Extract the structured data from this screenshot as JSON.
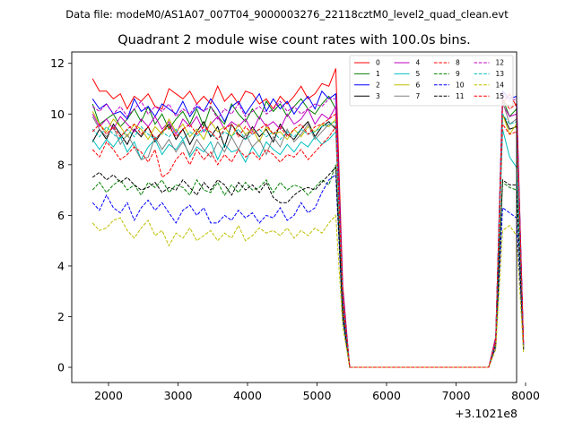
{
  "page": {
    "suptitle": "Data file: modeM0/AS1A07_007T04_9000003276_22118cztM0_level2_quad_clean.evt"
  },
  "chart_data": {
    "type": "line",
    "title": "Quadrant 2 module wise count rates with 100.0s bins.",
    "xlabel": "",
    "ylabel": "",
    "x_offset_label": "+3.1021e8",
    "xlim": [
      1600,
      8000
    ],
    "ylim": [
      -0.6,
      12.45
    ],
    "xticks": [
      2000,
      3000,
      4000,
      5000,
      6000,
      7000,
      8000
    ],
    "yticks": [
      0,
      2,
      4,
      6,
      8,
      10,
      12
    ],
    "grid": false,
    "legend": {
      "placement": "top-right",
      "columns": 4
    },
    "x": [
      1770,
      1870,
      1970,
      2070,
      2170,
      2270,
      2370,
      2470,
      2570,
      2670,
      2770,
      2870,
      2970,
      3070,
      3170,
      3270,
      3370,
      3470,
      3570,
      3670,
      3770,
      3870,
      3970,
      4070,
      4170,
      4270,
      4370,
      4470,
      4570,
      4670,
      4770,
      4870,
      4970,
      5070,
      5170,
      5270,
      5370,
      5470,
      7470,
      7570,
      7670,
      7770,
      7870,
      7970
    ],
    "series": [
      {
        "name": "0",
        "color": "#ff0000",
        "dash": "solid",
        "values": [
          11.4,
          10.9,
          10.9,
          10.6,
          10.8,
          10.2,
          10.7,
          10.5,
          10.8,
          10.3,
          10.2,
          11.0,
          10.8,
          10.6,
          10.9,
          10.4,
          10.7,
          10.4,
          11.1,
          10.5,
          10.8,
          10.4,
          10.9,
          10.8,
          10.4,
          10.6,
          10.2,
          10.7,
          10.4,
          10.7,
          11.1,
          10.6,
          10.8,
          11.2,
          11.1,
          11.8,
          3.2,
          0.0,
          0.0,
          1.2,
          10.4,
          10.8,
          10.3,
          0.8
        ]
      },
      {
        "name": "1",
        "color": "#008000",
        "dash": "solid",
        "values": [
          10.4,
          9.6,
          9.8,
          10.0,
          9.5,
          9.8,
          10.2,
          9.7,
          10.3,
          9.6,
          10.0,
          9.4,
          9.8,
          10.1,
          9.6,
          10.2,
          9.5,
          10.3,
          9.9,
          9.6,
          10.4,
          10.0,
          9.7,
          10.2,
          9.8,
          10.5,
          10.1,
          10.4,
          9.9,
          10.3,
          10.6,
          10.2,
          10.0,
          10.4,
          10.7,
          10.2,
          2.8,
          0.0,
          0.0,
          1.0,
          10.6,
          9.9,
          10.2,
          0.9
        ]
      },
      {
        "name": "2",
        "color": "#0000ff",
        "dash": "solid",
        "values": [
          10.6,
          10.2,
          10.4,
          10.0,
          10.1,
          9.8,
          10.6,
          10.1,
          10.3,
          9.9,
          10.4,
          10.2,
          10.0,
          10.5,
          9.9,
          10.3,
          10.1,
          10.6,
          10.2,
          9.7,
          10.3,
          10.5,
          10.0,
          10.4,
          10.8,
          10.1,
          10.6,
          10.2,
          10.5,
          10.0,
          10.4,
          10.7,
          10.2,
          10.9,
          10.6,
          10.8,
          3.0,
          0.0,
          0.0,
          1.1,
          10.9,
          10.6,
          10.7,
          0.9
        ]
      },
      {
        "name": "3",
        "color": "#000000",
        "dash": "solid",
        "values": [
          8.9,
          9.4,
          9.0,
          9.6,
          9.2,
          8.8,
          9.4,
          9.1,
          9.5,
          8.9,
          9.3,
          9.6,
          9.0,
          9.4,
          8.8,
          9.3,
          9.7,
          9.1,
          9.5,
          8.7,
          9.6,
          9.2,
          9.0,
          9.5,
          9.1,
          9.4,
          8.9,
          9.6,
          9.2,
          9.0,
          9.4,
          9.7,
          9.1,
          9.5,
          9.7,
          9.4,
          2.6,
          0.0,
          0.0,
          1.0,
          10.0,
          9.4,
          9.5,
          0.8
        ]
      },
      {
        "name": "4",
        "color": "#bf00bf",
        "dash": "solid",
        "values": [
          10.0,
          9.5,
          9.8,
          9.4,
          9.9,
          9.6,
          9.3,
          9.8,
          9.5,
          9.9,
          9.4,
          9.7,
          9.2,
          9.8,
          9.5,
          9.9,
          9.3,
          9.6,
          9.9,
          9.4,
          9.7,
          9.5,
          9.8,
          9.3,
          9.9,
          9.5,
          9.7,
          9.4,
          10.0,
          9.6,
          9.8,
          10.2,
          9.6,
          10.0,
          9.8,
          10.3,
          2.8,
          0.0,
          0.0,
          1.0,
          10.4,
          9.9,
          10.0,
          0.9
        ]
      },
      {
        "name": "5",
        "color": "#00bfbf",
        "dash": "solid",
        "values": [
          9.0,
          8.6,
          9.0,
          8.7,
          9.1,
          8.5,
          8.9,
          8.2,
          8.7,
          9.0,
          8.4,
          8.8,
          8.6,
          9.0,
          8.3,
          8.7,
          8.5,
          8.9,
          8.2,
          8.8,
          8.5,
          8.6,
          8.1,
          8.7,
          8.3,
          8.9,
          8.6,
          8.4,
          8.8,
          8.5,
          8.9,
          8.7,
          9.1,
          8.8,
          9.0,
          9.3,
          2.5,
          0.0,
          0.0,
          1.0,
          9.4,
          8.3,
          7.9,
          0.8
        ]
      },
      {
        "name": "6",
        "color": "#bfbf00",
        "dash": "solid",
        "values": [
          10.1,
          9.6,
          9.3,
          9.8,
          9.5,
          9.1,
          9.6,
          9.4,
          9.0,
          9.5,
          9.2,
          9.8,
          9.3,
          9.6,
          9.1,
          9.4,
          9.0,
          9.7,
          9.3,
          9.5,
          9.1,
          9.6,
          9.2,
          9.4,
          8.9,
          9.5,
          9.2,
          9.3,
          9.0,
          9.4,
          9.1,
          9.5,
          9.3,
          9.6,
          9.5,
          9.8,
          2.7,
          0.0,
          0.0,
          1.0,
          10.0,
          9.2,
          9.6,
          0.8
        ]
      },
      {
        "name": "7",
        "color": "#808080",
        "dash": "solid",
        "values": [
          9.9,
          9.4,
          9.1,
          9.5,
          8.8,
          9.2,
          8.7,
          8.2,
          8.3,
          9.1,
          8.6,
          9.0,
          8.5,
          8.9,
          8.4,
          9.0,
          8.6,
          8.3,
          8.9,
          8.5,
          9.1,
          8.6,
          9.2,
          8.7,
          9.0,
          8.4,
          9.1,
          8.7,
          9.4,
          8.9,
          9.2,
          9.6,
          9.0,
          9.3,
          9.6,
          9.5,
          2.7,
          0.0,
          0.0,
          1.0,
          10.5,
          9.6,
          9.8,
          0.8
        ]
      },
      {
        "name": "8",
        "color": "#ff0000",
        "dash": "dashed",
        "values": [
          8.6,
          8.3,
          8.9,
          8.6,
          8.2,
          8.4,
          8.7,
          8.5,
          8.1,
          8.6,
          7.5,
          7.7,
          8.2,
          8.5,
          8.0,
          8.6,
          8.2,
          8.5,
          8.0,
          8.4,
          8.1,
          8.6,
          8.3,
          8.5,
          8.2,
          8.6,
          8.4,
          8.1,
          8.4,
          8.3,
          8.6,
          8.2,
          8.5,
          8.8,
          9.1,
          9.5,
          2.4,
          0.0,
          0.0,
          1.0,
          9.6,
          9.2,
          9.3,
          0.7
        ]
      },
      {
        "name": "9",
        "color": "#008000",
        "dash": "dashed",
        "values": [
          7.0,
          7.3,
          6.9,
          7.2,
          7.4,
          7.0,
          7.2,
          6.8,
          7.3,
          7.1,
          7.4,
          6.9,
          7.2,
          7.1,
          6.8,
          7.4,
          7.0,
          6.9,
          7.3,
          6.8,
          7.2,
          6.9,
          7.3,
          7.0,
          7.1,
          7.4,
          6.9,
          7.3,
          7.0,
          7.2,
          7.1,
          6.8,
          7.1,
          7.4,
          7.2,
          8.0,
          2.0,
          0.0,
          0.0,
          0.9,
          7.3,
          7.1,
          7.0,
          0.7
        ]
      },
      {
        "name": "10",
        "color": "#0000ff",
        "dash": "dashed",
        "values": [
          6.5,
          6.2,
          6.8,
          6.3,
          6.1,
          6.5,
          5.8,
          6.3,
          6.6,
          6.2,
          6.5,
          6.1,
          5.7,
          6.2,
          6.4,
          6.0,
          6.3,
          5.7,
          5.7,
          6.0,
          5.8,
          6.2,
          5.9,
          6.1,
          5.7,
          6.0,
          5.9,
          6.3,
          5.8,
          6.0,
          6.5,
          6.1,
          6.3,
          6.9,
          7.4,
          7.6,
          1.9,
          0.0,
          0.0,
          0.8,
          6.3,
          6.1,
          5.9,
          0.7
        ]
      },
      {
        "name": "11",
        "color": "#000000",
        "dash": "dashed",
        "values": [
          7.5,
          7.7,
          7.4,
          7.6,
          7.3,
          7.5,
          7.2,
          7.0,
          7.1,
          7.3,
          6.9,
          7.1,
          7.0,
          7.4,
          7.1,
          6.8,
          7.3,
          7.0,
          7.4,
          7.2,
          6.8,
          7.3,
          7.0,
          7.2,
          6.9,
          7.3,
          6.7,
          6.5,
          6.5,
          6.8,
          7.0,
          7.1,
          7.0,
          7.3,
          7.6,
          7.9,
          2.1,
          0.0,
          0.0,
          0.9,
          7.4,
          7.2,
          7.2,
          0.7
        ]
      },
      {
        "name": "12",
        "color": "#bf00bf",
        "dash": "dashed",
        "values": [
          10.3,
          10.1,
          10.4,
          10.0,
          10.3,
          9.9,
          10.2,
          10.5,
          10.0,
          10.3,
          10.1,
          10.4,
          9.9,
          10.2,
          10.0,
          10.4,
          10.1,
          10.3,
          9.8,
          10.2,
          10.0,
          10.4,
          9.9,
          10.1,
          10.3,
          10.0,
          10.2,
          10.5,
          10.1,
          10.3,
          10.0,
          10.2,
          10.4,
          10.3,
          10.6,
          10.6,
          2.9,
          0.0,
          0.0,
          1.1,
          10.8,
          10.5,
          10.6,
          0.9
        ]
      },
      {
        "name": "13",
        "color": "#00bfbf",
        "dash": "dashed",
        "values": [
          9.4,
          9.1,
          9.5,
          9.2,
          9.0,
          9.4,
          9.1,
          9.5,
          9.2,
          9.0,
          9.3,
          9.1,
          9.4,
          9.0,
          9.3,
          9.1,
          9.4,
          9.2,
          9.0,
          9.3,
          9.1,
          9.4,
          9.0,
          9.2,
          9.4,
          9.1,
          9.3,
          9.0,
          9.3,
          9.1,
          9.4,
          9.2,
          9.3,
          9.5,
          9.6,
          9.7,
          2.6,
          0.0,
          0.0,
          1.0,
          10.0,
          9.6,
          9.7,
          0.8
        ]
      },
      {
        "name": "14",
        "color": "#bfbf00",
        "dash": "dashed",
        "values": [
          5.7,
          5.4,
          5.5,
          5.8,
          5.9,
          5.4,
          5.1,
          5.5,
          5.8,
          5.2,
          5.4,
          4.8,
          5.3,
          5.1,
          5.5,
          5.0,
          5.2,
          5.4,
          5.0,
          5.3,
          5.1,
          5.6,
          5.0,
          5.2,
          5.5,
          5.3,
          5.4,
          5.2,
          5.5,
          5.1,
          5.4,
          5.2,
          5.5,
          5.3,
          5.7,
          6.0,
          1.6,
          0.0,
          0.0,
          0.7,
          5.4,
          5.6,
          5.2,
          0.6
        ]
      },
      {
        "name": "15",
        "color": "#ff0000",
        "dash": "dashed",
        "values": [
          9.3,
          9.6,
          9.2,
          9.5,
          9.1,
          9.4,
          9.6,
          9.2,
          9.5,
          9.0,
          9.3,
          9.5,
          9.1,
          9.4,
          9.6,
          9.2,
          9.5,
          9.3,
          9.0,
          9.4,
          9.6,
          9.1,
          9.5,
          9.2,
          9.4,
          9.6,
          9.2,
          9.5,
          9.1,
          9.4,
          9.6,
          9.2,
          9.5,
          9.6,
          9.8,
          10.0,
          2.7,
          0.0,
          0.0,
          1.0,
          10.6,
          10.2,
          10.4,
          0.9
        ]
      }
    ]
  }
}
